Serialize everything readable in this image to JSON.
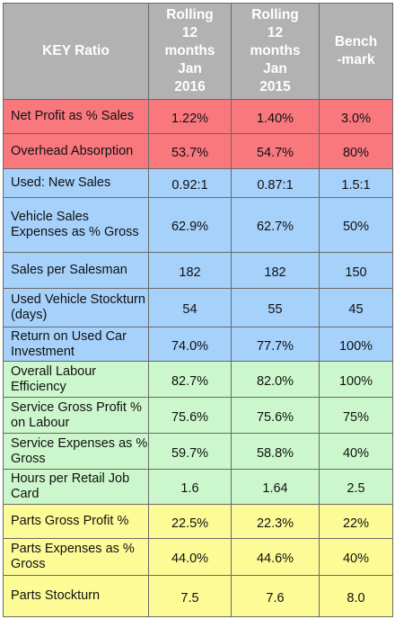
{
  "header": {
    "key": "KEY Ratio",
    "col1": [
      "Rolling",
      "12",
      "months",
      "Jan",
      "2016"
    ],
    "col2": [
      "Rolling",
      "12",
      "months",
      "Jan",
      "2015"
    ],
    "col3": [
      "Bench",
      "-mark"
    ]
  },
  "colors": {
    "header": "#b2b2b2",
    "red": "#f9787d",
    "blue": "#a6d1fb",
    "green": "#ccf7cc",
    "yellow": "#fdfb96"
  },
  "rows": [
    {
      "label": "Net Profit as % Sales",
      "v2016": "1.22%",
      "v2015": "1.40%",
      "bench": "3.0%"
    },
    {
      "label": "Overhead Absorption",
      "v2016": "53.7%",
      "v2015": "54.7%",
      "bench": "80%"
    },
    {
      "label": "Used: New Sales",
      "v2016": "0.92:1",
      "v2015": "0.87:1",
      "bench": "1.5:1"
    },
    {
      "label": "Vehicle Sales Expenses as % Gross",
      "v2016": "62.9%",
      "v2015": "62.7%",
      "bench": "50%"
    },
    {
      "label": "Sales per Salesman",
      "v2016": "182",
      "v2015": "182",
      "bench": "150"
    },
    {
      "label": "Used Vehicle Stockturn (days)",
      "v2016": "54",
      "v2015": "55",
      "bench": "45"
    },
    {
      "label": "Return on Used Car Investment",
      "v2016": "74.0%",
      "v2015": "77.7%",
      "bench": "100%"
    },
    {
      "label": "Overall Labour Efficiency",
      "v2016": "82.7%",
      "v2015": "82.0%",
      "bench": "100%"
    },
    {
      "label": "Service Gross Profit % on Labour",
      "v2016": "75.6%",
      "v2015": "75.6%",
      "bench": "75%"
    },
    {
      "label": "Service Expenses as % Gross",
      "v2016": "59.7%",
      "v2015": "58.8%",
      "bench": "40%"
    },
    {
      "label": "Hours per Retail Job Card",
      "v2016": "1.6",
      "v2015": "1.64",
      "bench": "2.5"
    },
    {
      "label": "Parts Gross Profit %",
      "v2016": "22.5%",
      "v2015": "22.3%",
      "bench": "22%"
    },
    {
      "label": "Parts Expenses as % Gross",
      "v2016": "44.0%",
      "v2015": "44.6%",
      "bench": "40%"
    },
    {
      "label": "Parts Stockturn",
      "v2016": "7.5",
      "v2015": "7.6",
      "bench": "8.0"
    }
  ]
}
